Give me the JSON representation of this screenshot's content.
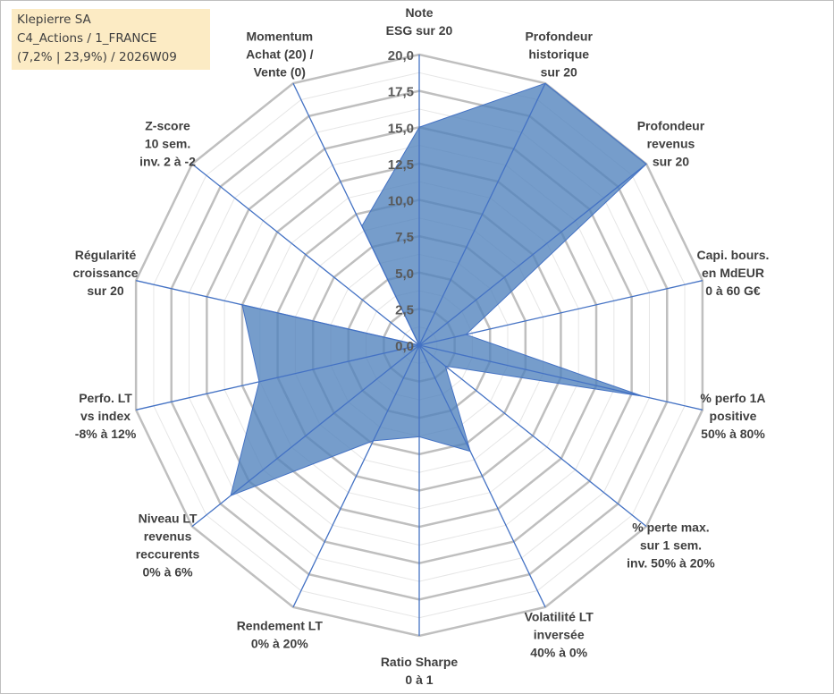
{
  "info_box": {
    "line1": "Klepierre SA",
    "line2": "C4_Actions / 1_FRANCE",
    "line3": "(7,2% | 23,9%) / 2026W09"
  },
  "colors": {
    "fill": "#4f81bd",
    "axis": "#4472c4",
    "grid": "#bfbfbf"
  },
  "chart_data": {
    "type": "radar",
    "title": "",
    "rlim": [
      0,
      20
    ],
    "r_ticks": [
      "0,0",
      "2,5",
      "5,0",
      "7,5",
      "10,0",
      "12,5",
      "15,0",
      "17,5",
      "20,0"
    ],
    "categories": [
      [
        "Note",
        "ESG sur 20"
      ],
      [
        "Profondeur",
        "historique",
        "sur 20"
      ],
      [
        "Profondeur",
        "revenus",
        "sur 20"
      ],
      [
        "Capi. bours.",
        "en MdEUR",
        "0 à 60 G€"
      ],
      [
        "% perfo 1A",
        "positive",
        "50% à 80%"
      ],
      [
        "% perte max.",
        "sur 1 sem.",
        "inv. 50% à 20%"
      ],
      [
        "Volatilité LT",
        "inversée",
        "40% à 0%"
      ],
      [
        "Ratio Sharpe",
        "0 à 1"
      ],
      [
        "Rendement LT",
        "0% à 20%"
      ],
      [
        "Niveau LT",
        "revenus",
        "reccurents",
        "0% à 6%"
      ],
      [
        "Perfo. LT",
        "vs index",
        "-8% à 12%"
      ],
      [
        "Régularité",
        "croissance",
        "sur 20"
      ],
      [
        "Z-score",
        "10 sem.",
        "inv. 2 à -2"
      ],
      [
        "Momentum",
        "Achat (20) /",
        "Vente (0)"
      ]
    ],
    "series": [
      {
        "name": "Klepierre SA",
        "values": [
          15.0,
          20.0,
          20.0,
          3.3,
          15.8,
          2.3,
          8.1,
          6.3,
          7.3,
          16.6,
          11.3,
          12.5,
          0.0,
          9.1
        ]
      }
    ]
  }
}
